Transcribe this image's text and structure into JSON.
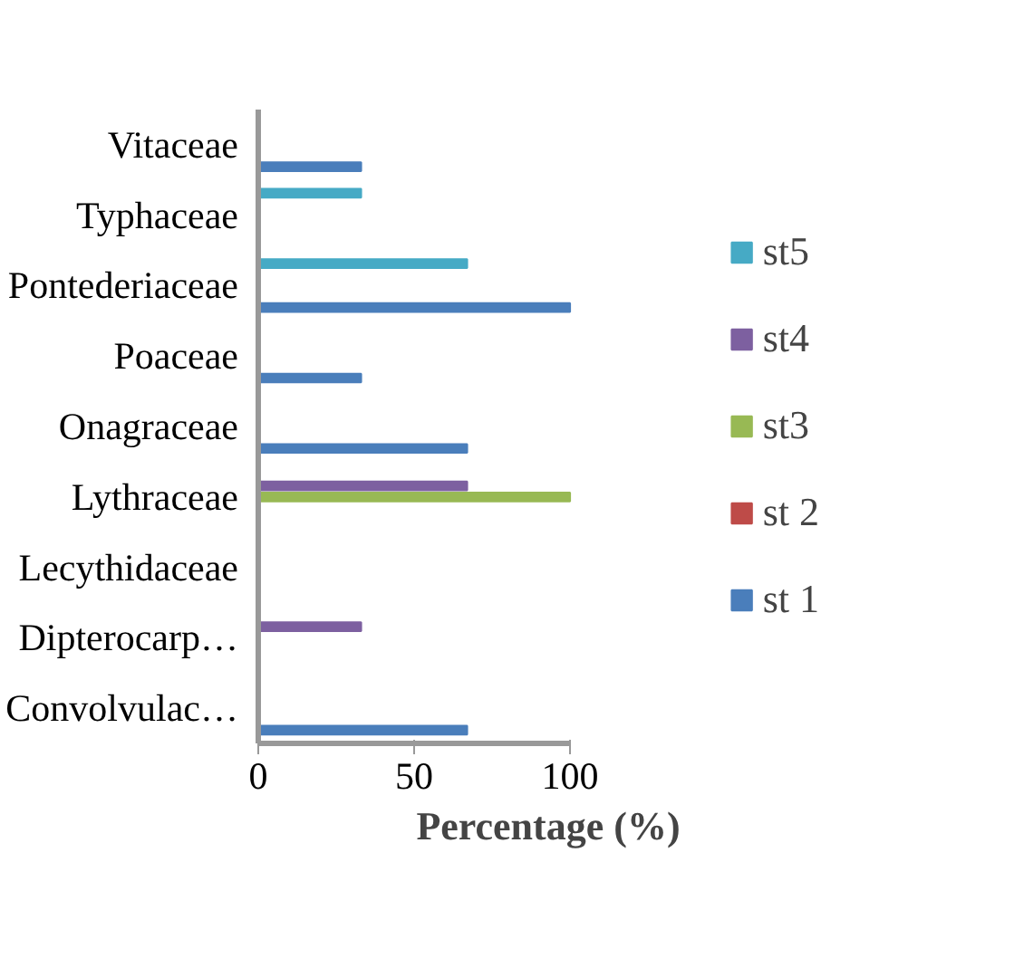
{
  "chart_data": {
    "type": "bar",
    "orientation": "horizontal",
    "xlabel": "Percentage (%)",
    "categories": [
      "Vitaceae",
      "Typhaceae",
      "Pontederiaceae",
      "Poaceae",
      "Onagraceae",
      "Lythraceae",
      "Lecythidaceae",
      "Dipterocarp…",
      "Convolvulac…"
    ],
    "series": [
      {
        "name": "st 1",
        "color": "#4a7ebb",
        "values": [
          33,
          null,
          100,
          33,
          67,
          null,
          null,
          null,
          67
        ]
      },
      {
        "name": "st 2",
        "color": "#be4b48",
        "values": [
          null,
          null,
          null,
          null,
          null,
          null,
          null,
          null,
          null
        ]
      },
      {
        "name": "st3",
        "color": "#98b954",
        "values": [
          null,
          null,
          null,
          null,
          null,
          100,
          null,
          null,
          null
        ]
      },
      {
        "name": "st4",
        "color": "#7d60a0",
        "values": [
          null,
          null,
          null,
          null,
          null,
          67,
          null,
          33,
          null
        ]
      },
      {
        "name": "st5",
        "color": "#46aac5",
        "values": [
          null,
          33,
          67,
          null,
          null,
          null,
          null,
          null,
          null
        ]
      }
    ],
    "xlim": [
      0,
      100
    ],
    "xticks": [
      0,
      50,
      100
    ],
    "grid": false,
    "legend": "right"
  }
}
